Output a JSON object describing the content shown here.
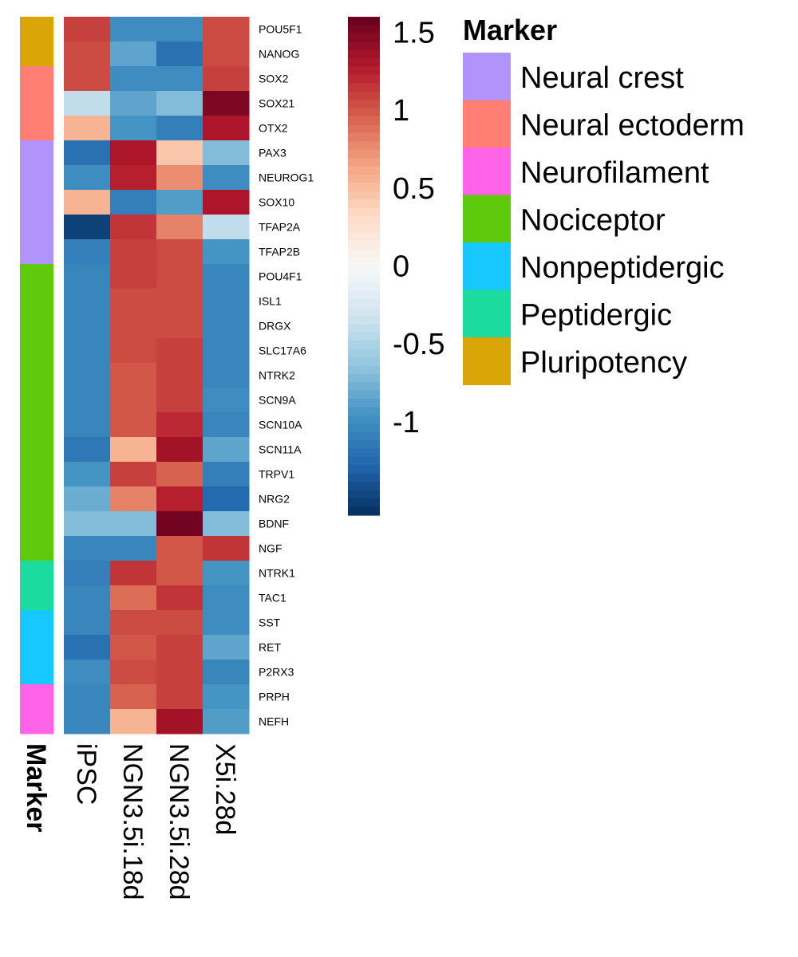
{
  "chart_data": {
    "type": "heatmap",
    "columns": [
      "iPSC",
      "NGN3.5i.18d",
      "NGN3.5i.28d",
      "X5i.28d"
    ],
    "rows": [
      {
        "gene": "POU5F1",
        "marker": "Pluripotency",
        "values": [
          1.1,
          -1.0,
          -1.0,
          1.05
        ]
      },
      {
        "gene": "NANOG",
        "marker": "Pluripotency",
        "values": [
          1.05,
          -0.85,
          -1.2,
          1.05
        ]
      },
      {
        "gene": "SOX2",
        "marker": "Neural ectoderm",
        "values": [
          1.05,
          -1.0,
          -1.0,
          1.1
        ]
      },
      {
        "gene": "SOX21",
        "marker": "Neural ectoderm",
        "values": [
          -0.4,
          -0.85,
          -0.7,
          1.5
        ]
      },
      {
        "gene": "OTX2",
        "marker": "Neural ectoderm",
        "values": [
          0.55,
          -0.95,
          -1.1,
          1.3
        ]
      },
      {
        "gene": "PAX3",
        "marker": "Neural crest",
        "values": [
          -1.2,
          1.3,
          0.45,
          -0.7
        ]
      },
      {
        "gene": "NEUROG1",
        "marker": "Neural crest",
        "values": [
          -1.0,
          1.25,
          0.75,
          -1.0
        ]
      },
      {
        "gene": "SOX10",
        "marker": "Neural crest",
        "values": [
          0.55,
          -1.1,
          -0.9,
          1.3
        ]
      },
      {
        "gene": "TFAP2A",
        "marker": "Neural crest",
        "values": [
          -1.5,
          1.15,
          0.8,
          -0.4
        ]
      },
      {
        "gene": "TFAP2B",
        "marker": "Neural crest",
        "values": [
          -1.1,
          1.1,
          1.05,
          -0.95
        ]
      },
      {
        "gene": "POU4F1",
        "marker": "Nociceptor",
        "values": [
          -1.05,
          1.1,
          1.05,
          -1.05
        ]
      },
      {
        "gene": "ISL1",
        "marker": "Nociceptor",
        "values": [
          -1.05,
          1.05,
          1.05,
          -1.05
        ]
      },
      {
        "gene": "DRGX",
        "marker": "Nociceptor",
        "values": [
          -1.05,
          1.05,
          1.05,
          -1.05
        ]
      },
      {
        "gene": "SLC17A6",
        "marker": "Nociceptor",
        "values": [
          -1.05,
          1.05,
          1.1,
          -1.05
        ]
      },
      {
        "gene": "NTRK2",
        "marker": "Nociceptor",
        "values": [
          -1.05,
          1.0,
          1.1,
          -1.05
        ]
      },
      {
        "gene": "SCN9A",
        "marker": "Nociceptor",
        "values": [
          -1.05,
          1.0,
          1.1,
          -1.0
        ]
      },
      {
        "gene": "SCN10A",
        "marker": "Nociceptor",
        "values": [
          -1.05,
          1.0,
          1.2,
          -1.05
        ]
      },
      {
        "gene": "SCN11A",
        "marker": "Nociceptor",
        "values": [
          -1.15,
          0.55,
          1.35,
          -0.85
        ]
      },
      {
        "gene": "TRPV1",
        "marker": "Nociceptor",
        "values": [
          -0.95,
          1.1,
          0.95,
          -1.1
        ]
      },
      {
        "gene": "NRG2",
        "marker": "Nociceptor",
        "values": [
          -0.8,
          0.8,
          1.25,
          -1.25
        ]
      },
      {
        "gene": "BDNF",
        "marker": "Nociceptor",
        "values": [
          -0.7,
          -0.7,
          1.55,
          -0.7
        ]
      },
      {
        "gene": "NGF",
        "marker": "Nociceptor",
        "values": [
          -1.05,
          -1.05,
          1.0,
          1.15
        ]
      },
      {
        "gene": "NTRK1",
        "marker": "Peptidergic",
        "values": [
          -1.1,
          1.15,
          1.0,
          -0.95
        ]
      },
      {
        "gene": "TAC1",
        "marker": "Peptidergic",
        "values": [
          -1.05,
          0.9,
          1.15,
          -1.0
        ]
      },
      {
        "gene": "SST",
        "marker": "Nonpeptidergic",
        "values": [
          -1.05,
          1.05,
          1.05,
          -1.0
        ]
      },
      {
        "gene": "RET",
        "marker": "Nonpeptidergic",
        "values": [
          -1.2,
          1.0,
          1.1,
          -0.85
        ]
      },
      {
        "gene": "P2RX3",
        "marker": "Nonpeptidergic",
        "values": [
          -1.0,
          1.05,
          1.1,
          -1.05
        ]
      },
      {
        "gene": "PRPH",
        "marker": "Neurofilament",
        "values": [
          -1.05,
          0.95,
          1.1,
          -0.95
        ]
      },
      {
        "gene": "NEFH",
        "marker": "Neurofilament",
        "values": [
          -1.05,
          0.55,
          1.35,
          -0.9
        ]
      }
    ],
    "annotation_label": "Marker",
    "colorbar": {
      "ticks": [
        "1.5",
        "1",
        "0.5",
        "0",
        "-0.5",
        "-1"
      ],
      "tick_values": [
        1.5,
        1,
        0.5,
        0,
        -0.5,
        -1
      ],
      "range": [
        -1.6,
        1.6
      ],
      "colors": [
        "#053061",
        "#2166AC",
        "#4393C3",
        "#92C5DE",
        "#D1E5F0",
        "#F7F7F7",
        "#FDDBC7",
        "#F4A582",
        "#D6604D",
        "#B2182B",
        "#67001F"
      ]
    },
    "legend": {
      "title": "Marker",
      "position": "right",
      "items": [
        {
          "label": "Neural crest",
          "color": "#B194FB"
        },
        {
          "label": "Neural ectoderm",
          "color": "#FF7F74"
        },
        {
          "label": "Neurofilament",
          "color": "#FF63E8"
        },
        {
          "label": "Nociceptor",
          "color": "#5FCA0C"
        },
        {
          "label": "Nonpeptidergic",
          "color": "#16C8FD"
        },
        {
          "label": "Peptidergic",
          "color": "#1CDB9F"
        },
        {
          "label": "Pluripotency",
          "color": "#DAA507"
        }
      ]
    }
  }
}
